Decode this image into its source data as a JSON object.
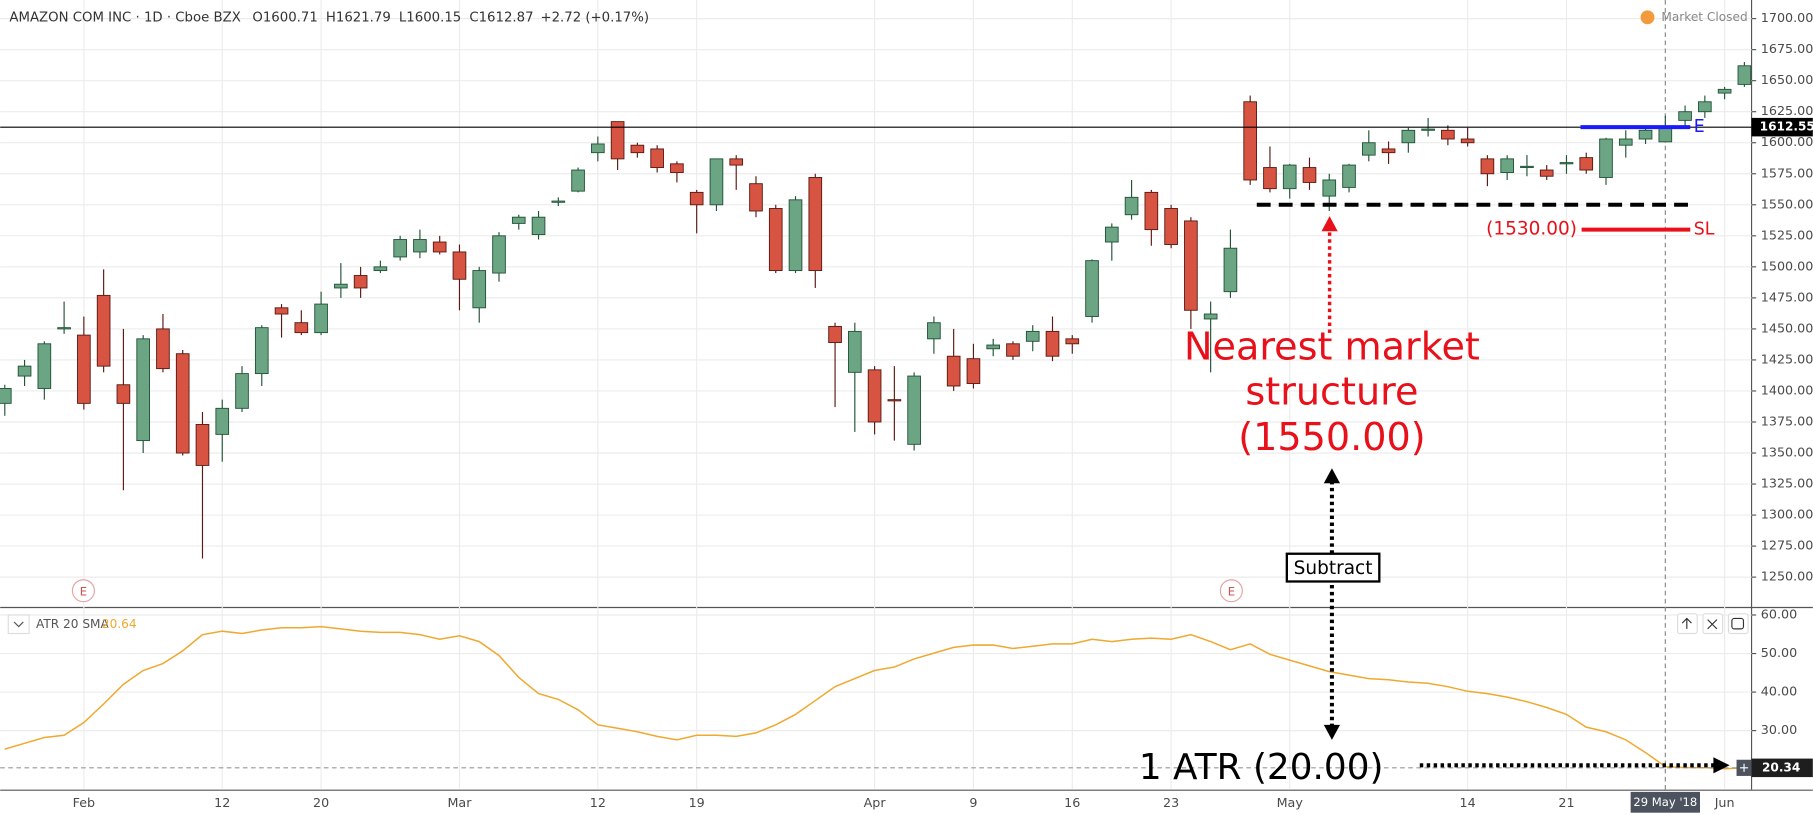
{
  "chart_data": [
    {
      "type": "candlestick",
      "title": "AMAZON COM INC · 1D · Cboe BZX",
      "status": "Market Closed",
      "ohlc_labels": [
        "O",
        "H",
        "L",
        "C"
      ],
      "change": "+2.72 (+0.17%)",
      "categories": [
        null,
        null,
        null,
        null,
        "Feb",
        null,
        null,
        null,
        null,
        null,
        null,
        "12",
        null,
        null,
        null,
        null,
        "20",
        null,
        null,
        null,
        null,
        null,
        null,
        "Mar",
        null,
        null,
        null,
        null,
        null,
        null,
        "12",
        null,
        null,
        null,
        null,
        "19",
        null,
        null,
        null,
        null,
        null,
        null,
        null,
        null,
        "Apr",
        null,
        null,
        null,
        null,
        "9",
        null,
        null,
        null,
        null,
        "16",
        null,
        null,
        null,
        null,
        "23",
        null,
        null,
        null,
        null,
        null,
        "May",
        null,
        null,
        null,
        null,
        null,
        null,
        null,
        null,
        "14",
        null,
        null,
        null,
        null,
        "21",
        null,
        null,
        null,
        null,
        "29 May '18",
        null,
        null,
        "Jun",
        null
      ],
      "open": [
        1390,
        1412,
        1402,
        1450,
        1445,
        1477,
        1405,
        1360,
        1450,
        1430,
        1373,
        1365,
        1386,
        1414,
        1467,
        1455,
        1447,
        1483,
        1493,
        1497,
        1508,
        1512,
        1520,
        1512,
        1467,
        1495,
        1535,
        1526,
        1552,
        1561,
        1592,
        1617,
        1598,
        1595,
        1583,
        1560,
        1550,
        1587,
        1567,
        1547,
        1497,
        1572,
        1452,
        1415,
        1417,
        1393,
        1357,
        1442,
        1428,
        1426,
        1434,
        1438,
        1440,
        1448,
        1442,
        1460,
        1520,
        1542,
        1560,
        1547,
        1537,
        1458,
        1480,
        1633,
        1580,
        1563,
        1580,
        1557,
        1564,
        1590,
        1595,
        1600,
        1610,
        1610,
        1603,
        1587,
        1576,
        1580,
        1578,
        1583,
        1588,
        1572,
        1598,
        1603,
        1600.71,
        1618,
        1625,
        1640,
        1647
      ],
      "high": [
        1405,
        1425,
        1440,
        1472,
        1460,
        1498,
        1450,
        1445,
        1462,
        1433,
        1383,
        1393,
        1420,
        1453,
        1470,
        1465,
        1480,
        1503,
        1500,
        1505,
        1525,
        1530,
        1525,
        1518,
        1500,
        1528,
        1542,
        1545,
        1556,
        1580,
        1605,
        1617,
        1600,
        1598,
        1585,
        1562,
        1587,
        1590,
        1573,
        1550,
        1557,
        1575,
        1455,
        1455,
        1420,
        1420,
        1415,
        1460,
        1450,
        1438,
        1442,
        1440,
        1453,
        1460,
        1445,
        1506,
        1535,
        1570,
        1562,
        1550,
        1540,
        1472,
        1530,
        1638,
        1597,
        1583,
        1588,
        1575,
        1583,
        1610,
        1601,
        1612,
        1620,
        1614,
        1612,
        1590,
        1590,
        1590,
        1582,
        1590,
        1592,
        1604,
        1610,
        1612,
        1621.79,
        1630,
        1638,
        1645,
        1665
      ],
      "low": [
        1380,
        1404,
        1393,
        1446,
        1385,
        1415,
        1320,
        1350,
        1415,
        1348,
        1265,
        1343,
        1383,
        1404,
        1443,
        1445,
        1445,
        1475,
        1475,
        1495,
        1505,
        1507,
        1510,
        1465,
        1455,
        1488,
        1530,
        1522,
        1549,
        1560,
        1585,
        1578,
        1588,
        1576,
        1568,
        1527,
        1545,
        1562,
        1540,
        1495,
        1495,
        1483,
        1387,
        1367,
        1365,
        1360,
        1352,
        1430,
        1400,
        1402,
        1428,
        1425,
        1432,
        1424,
        1430,
        1455,
        1505,
        1538,
        1517,
        1515,
        1450,
        1415,
        1475,
        1566,
        1560,
        1555,
        1562,
        1545,
        1560,
        1585,
        1583,
        1592,
        1605,
        1598,
        1597,
        1565,
        1570,
        1573,
        1570,
        1575,
        1575,
        1566,
        1588,
        1599,
        1600.15,
        1614,
        1620,
        1635,
        1645
      ],
      "close": [
        1402,
        1420,
        1438,
        1451,
        1390,
        1420,
        1390,
        1442,
        1418,
        1350,
        1340,
        1386,
        1414,
        1451,
        1462,
        1447,
        1470,
        1486,
        1483,
        1500,
        1522,
        1522,
        1512,
        1490,
        1497,
        1525,
        1540,
        1540,
        1553,
        1578,
        1599,
        1587,
        1592,
        1580,
        1576,
        1550,
        1587,
        1582,
        1545,
        1497,
        1554,
        1497,
        1439,
        1448,
        1375,
        1392,
        1412,
        1455,
        1404,
        1406,
        1437,
        1428,
        1448,
        1428,
        1438,
        1505,
        1532,
        1556,
        1530,
        1518,
        1465,
        1462,
        1515,
        1570,
        1563,
        1582,
        1568,
        1570,
        1582,
        1600,
        1592,
        1610,
        1611,
        1603,
        1600,
        1575,
        1587,
        1581,
        1573,
        1584,
        1578,
        1603,
        1603,
        1610,
        1612.87,
        1625,
        1633,
        1643,
        1662
      ],
      "up_color": "#6ba583",
      "down_color": "#d75442",
      "ylim": [
        1226,
        1715
      ],
      "yticks": [
        {
          "value": 1250,
          "label": "1250.00"
        },
        {
          "value": 1275,
          "label": "1275.00"
        },
        {
          "value": 1300,
          "label": "1300.00"
        },
        {
          "value": 1325,
          "label": "1325.00"
        },
        {
          "value": 1350,
          "label": "1350.00"
        },
        {
          "value": 1375,
          "label": "1375.00"
        },
        {
          "value": 1400,
          "label": "1400.00"
        },
        {
          "value": 1425,
          "label": "1425.00"
        },
        {
          "value": 1450,
          "label": "1450.00"
        },
        {
          "value": 1475,
          "label": "1475.00"
        },
        {
          "value": 1500,
          "label": "1500.00"
        },
        {
          "value": 1525,
          "label": "1525.00"
        },
        {
          "value": 1550,
          "label": "1550.00"
        },
        {
          "value": 1575,
          "label": "1575.00"
        },
        {
          "value": 1600,
          "label": "1600.00"
        },
        {
          "value": 1625,
          "label": "1625.00"
        },
        {
          "value": 1650,
          "label": "1650.00"
        },
        {
          "value": 1675,
          "label": "1675.00"
        },
        {
          "value": 1700,
          "label": "1700.00"
        }
      ],
      "grid": true,
      "crosshair": true,
      "price_line": 1612.55,
      "levels": [
        {
          "name": "E",
          "value": 1612.55,
          "color": "#1a1aff",
          "style": "solid"
        },
        {
          "value": 1550,
          "color": "#000000",
          "style": "dashed",
          "text_lines": [
            "Nearest market",
            "structure"
          ],
          "value_label": "(1550.00)",
          "text_color": "#e8101a"
        },
        {
          "name": "SL",
          "value": 1530,
          "color": "#e8101a",
          "style": "solid",
          "value_label": "(1530.00)"
        }
      ],
      "events": [
        "E",
        "E"
      ]
    },
    {
      "type": "line",
      "name": "ATR 20 SMA",
      "color": "#f0a830",
      "values": [
        25.2,
        26.7,
        28.2,
        28.8,
        32.1,
        36.9,
        42,
        45.6,
        47.4,
        50.7,
        54.9,
        55.8,
        55.2,
        56.1,
        56.7,
        56.7,
        57,
        56.4,
        55.8,
        55.5,
        55.5,
        54.9,
        53.7,
        54.6,
        53.1,
        49.5,
        43.8,
        39.6,
        38.1,
        35.4,
        31.5,
        30.6,
        29.7,
        28.5,
        27.6,
        28.8,
        28.8,
        28.5,
        29.4,
        31.5,
        34.2,
        37.8,
        41.4,
        43.5,
        45.6,
        46.5,
        48.6,
        50.1,
        51.6,
        52.2,
        52.2,
        51.3,
        51.9,
        52.5,
        52.5,
        53.7,
        53.1,
        53.7,
        54,
        53.7,
        54.9,
        53.1,
        51,
        52.5,
        49.8,
        48.3,
        46.8,
        45.3,
        44.4,
        43.5,
        43.2,
        42.6,
        42.3,
        41.4,
        40.2,
        39.6,
        38.7,
        37.5,
        36,
        34.2,
        30.9,
        29.7,
        27.6,
        24.3,
        20.64,
        20.4,
        20.4,
        20.1,
        20.34
      ],
      "ylim": [
        14.7,
        61.5
      ],
      "yticks": [
        {
          "value": 30,
          "label": "30.00"
        },
        {
          "value": 40,
          "label": "40.00"
        },
        {
          "value": 50,
          "label": "50.00"
        },
        {
          "value": 60,
          "label": "60.00"
        }
      ],
      "grid": true,
      "annotations": [
        "Subtract",
        "1 ATR (20.00)"
      ]
    }
  ]
}
